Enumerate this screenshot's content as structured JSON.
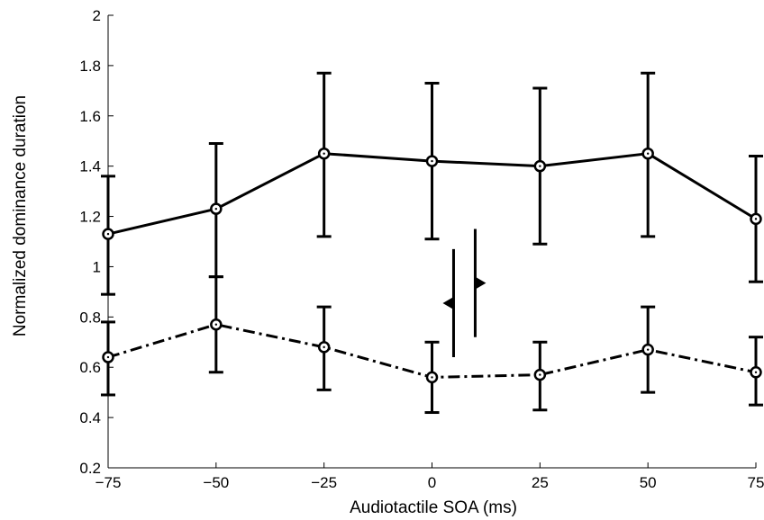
{
  "chart_data": {
    "type": "line",
    "xlabel": "Audiotactile SOA (ms)",
    "ylabel": "Normalized dominance duration",
    "xlim": [
      -75,
      75
    ],
    "ylim": [
      0.2,
      2
    ],
    "x_tick_labels": [
      "−75",
      "−50",
      "−25",
      "0",
      "25",
      "50",
      "75"
    ],
    "x_tick_values": [
      -75,
      -50,
      -25,
      0,
      25,
      50,
      75
    ],
    "y_tick_labels": [
      "0.2",
      "0.4",
      "0.6",
      "0.8",
      "1",
      "1.2",
      "1.4",
      "1.6",
      "1.8",
      "2"
    ],
    "y_tick_values": [
      0.2,
      0.4,
      0.6,
      0.8,
      1.0,
      1.2,
      1.4,
      1.6,
      1.8,
      2.0
    ],
    "x": [
      -75,
      -50,
      -25,
      0,
      25,
      50,
      75
    ],
    "series": [
      {
        "line_style": "solid",
        "marker": "circle",
        "values": [
          1.13,
          1.23,
          1.45,
          1.42,
          1.4,
          1.45,
          1.19
        ],
        "error_low": [
          0.89,
          0.96,
          1.12,
          1.11,
          1.09,
          1.12,
          0.94
        ],
        "error_high": [
          1.36,
          1.49,
          1.77,
          1.73,
          1.71,
          1.77,
          1.44
        ]
      },
      {
        "line_style": "dash-dot",
        "marker": "circle",
        "values": [
          0.64,
          0.77,
          0.68,
          0.56,
          0.57,
          0.67,
          0.58
        ],
        "error_low": [
          0.49,
          0.58,
          0.51,
          0.42,
          0.43,
          0.5,
          0.45
        ],
        "error_high": [
          0.78,
          0.96,
          0.84,
          0.7,
          0.7,
          0.84,
          0.72
        ]
      }
    ],
    "annotation": {
      "type": "opposing-arrows",
      "x": [
        5,
        10
      ],
      "y_ranges": [
        [
          0.64,
          1.07
        ],
        [
          0.72,
          1.15
        ]
      ],
      "directions": [
        "left",
        "right"
      ]
    },
    "grid": false,
    "legend": "none"
  }
}
